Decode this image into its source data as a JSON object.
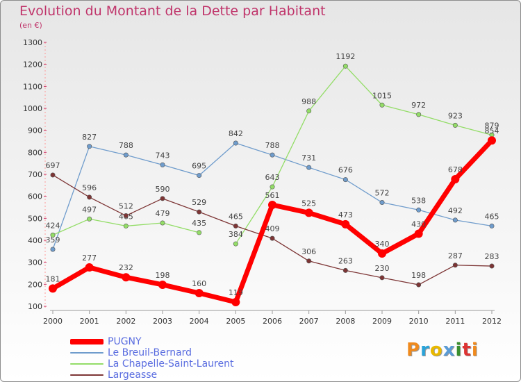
{
  "title": "Evolution du Montant de la Dette par Habitant",
  "subtitle": "(en €)",
  "logo_text": "Proxiti",
  "chart_data": {
    "type": "line",
    "title": "Evolution du Montant de la Dette par Habitant",
    "subtitle": "(en €)",
    "xlabel": "",
    "ylabel": "",
    "x": [
      "2000",
      "2001",
      "2002",
      "2003",
      "2004",
      "2005",
      "2006",
      "2007",
      "2008",
      "2009",
      "2010",
      "2011",
      "2012"
    ],
    "ylim": [
      100,
      1300
    ],
    "yticks": [
      100,
      200,
      300,
      400,
      500,
      600,
      700,
      800,
      900,
      1000,
      1100,
      1200,
      1300
    ],
    "grid": false,
    "legend_position": "bottom-left",
    "series": [
      {
        "name": "Le Breuil-Bernard",
        "color": "#6f9ccc",
        "values": [
          359,
          827,
          788,
          743,
          695,
          842,
          788,
          731,
          676,
          572,
          538,
          492,
          465
        ]
      },
      {
        "name": "La Chapelle-Saint-Laurent",
        "color": "#93dd67",
        "values": [
          424,
          497,
          465,
          479,
          435,
          384,
          643,
          988,
          1192,
          1015,
          972,
          923,
          879
        ]
      },
      {
        "name": "Largeasse",
        "color": "#7d3535",
        "values": [
          697,
          596,
          512,
          590,
          529,
          465,
          409,
          306,
          263,
          230,
          198,
          287,
          283
        ]
      },
      {
        "name": "PUGNY",
        "color": "#ff0000",
        "values": [
          181,
          277,
          232,
          198,
          160,
          119,
          561,
          525,
          473,
          340,
          430,
          678,
          854
        ]
      }
    ],
    "legend_order": [
      "PUGNY",
      "Le Breuil-Bernard",
      "La Chapelle-Saint-Laurent",
      "Largeasse"
    ]
  }
}
